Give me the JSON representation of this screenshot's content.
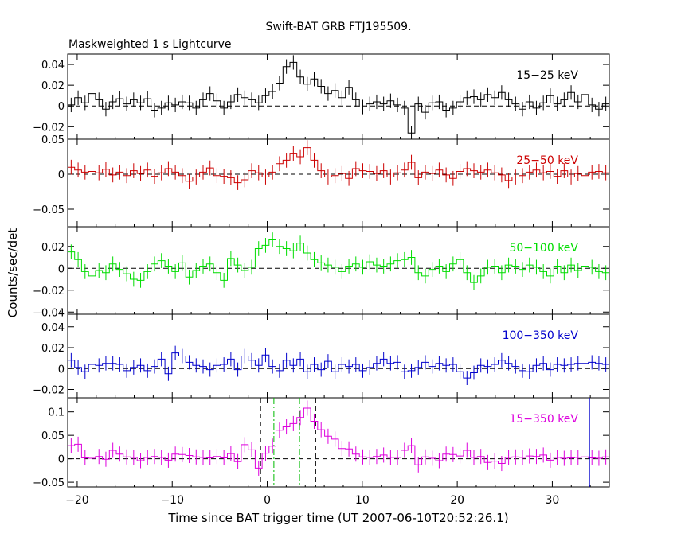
{
  "header": {
    "title": "Swift-BAT GRB FTJ195509.",
    "subtitle": "Maskweighted 1 s Lightcurve"
  },
  "chart_data": {
    "type": "line",
    "xlabel": "Time since BAT trigger time (UT 2007-06-10T20:52:26.1)",
    "ylabel": "Counts/sec/det",
    "xlim": [
      -21,
      36
    ],
    "x_ticks": [
      -20,
      -10,
      0,
      10,
      20,
      30
    ],
    "x_tick_labels": [
      "−20",
      "−10",
      "0",
      "10",
      "20",
      "30"
    ],
    "vertical_markers": [
      {
        "x": -0.7,
        "color": "#000000",
        "style": "dashed"
      },
      {
        "x": 5.1,
        "color": "#000000",
        "style": "dashed"
      },
      {
        "x": 0.7,
        "color": "#00bb00",
        "style": "dashdot"
      },
      {
        "x": 3.4,
        "color": "#00bb00",
        "style": "dashdot"
      },
      {
        "x": 33.9,
        "color": "#0000cc",
        "style": "solid",
        "panel": 4
      }
    ],
    "panels": [
      {
        "name": "15−25 keV",
        "color": "#000000",
        "ylim": [
          -0.032,
          0.05
        ],
        "y_ticks": [
          0.04,
          0.02,
          0,
          -0.02
        ],
        "y_tick_labels": [
          "0.04",
          "0.02",
          "0",
          "−0.02"
        ],
        "values": [
          0.001,
          0.008,
          0.003,
          0.012,
          0.006,
          -0.003,
          0.004,
          0.007,
          0.002,
          0.006,
          0.003,
          0.007,
          -0.004,
          -0.002,
          0.003,
          0.001,
          0.004,
          0.003,
          -0.002,
          0.006,
          0.012,
          0.005,
          -0.002,
          0.004,
          0.011,
          0.008,
          0.006,
          0.003,
          0.01,
          0.014,
          0.022,
          0.038,
          0.042,
          0.028,
          0.021,
          0.026,
          0.019,
          0.012,
          0.015,
          0.008,
          0.018,
          0.006,
          -0.001,
          0.002,
          0.004,
          0.002,
          0.005,
          0.001,
          -0.002,
          -0.026,
          0.002,
          -0.006,
          0.003,
          0.004,
          -0.004,
          -0.002,
          0.004,
          0.008,
          0.009,
          0.006,
          0.011,
          0.008,
          0.013,
          0.006,
          0.002,
          -0.003,
          0.004,
          -0.002,
          0.003,
          0.01,
          0.002,
          0.006,
          0.013,
          0.004,
          0.011,
          0.001,
          -0.003,
          0.002
        ]
      },
      {
        "name": "25−50 keV",
        "color": "#cc0000",
        "ylim": [
          -0.075,
          0.05
        ],
        "y_ticks": [
          0.05,
          0,
          -0.05
        ],
        "y_tick_labels": [
          "0.05",
          "0",
          "−0.05"
        ],
        "values": [
          0.01,
          0.006,
          0.003,
          0.004,
          0.002,
          0.007,
          -0.001,
          0.003,
          -0.002,
          0.005,
          0.001,
          0.006,
          -0.003,
          0.002,
          0.008,
          0.003,
          -0.002,
          -0.01,
          -0.004,
          0.003,
          0.009,
          -0.002,
          -0.003,
          -0.005,
          -0.012,
          -0.008,
          0.005,
          0.002,
          -0.004,
          0.003,
          0.015,
          0.02,
          0.03,
          0.025,
          0.038,
          0.02,
          0.005,
          -0.004,
          -0.002,
          0.001,
          -0.006,
          0.008,
          0.005,
          0.004,
          0.001,
          0.005,
          -0.004,
          0.002,
          0.006,
          0.017,
          -0.005,
          0.003,
          0.001,
          0.006,
          -0.001,
          -0.006,
          0.004,
          0.008,
          0.005,
          0.003,
          0.006,
          0.002,
          -0.001,
          -0.009,
          -0.004,
          -0.002,
          0.003,
          0.006,
          0.002,
          0.004,
          -0.003,
          0.005,
          -0.004,
          0.001,
          -0.002,
          0.003,
          0.004,
          0.002
        ]
      },
      {
        "name": "50−100 keV",
        "color": "#00dd00",
        "ylim": [
          -0.042,
          0.038
        ],
        "y_ticks": [
          0.02,
          0,
          -0.02,
          -0.04
        ],
        "y_tick_labels": [
          "0.02",
          "0",
          "−0.02",
          "−0.04"
        ],
        "values": [
          0.015,
          0.008,
          -0.003,
          -0.007,
          -0.002,
          -0.004,
          0.004,
          -0.001,
          -0.005,
          -0.01,
          -0.011,
          -0.003,
          0.004,
          0.007,
          0.002,
          -0.003,
          0.005,
          -0.008,
          -0.002,
          0.002,
          0.004,
          -0.004,
          -0.011,
          0.009,
          0.003,
          -0.002,
          0.001,
          0.018,
          0.021,
          0.026,
          0.02,
          0.018,
          0.016,
          0.023,
          0.014,
          0.008,
          0.005,
          0.003,
          0.001,
          -0.003,
          0.002,
          0.004,
          0.001,
          0.006,
          0.003,
          0.002,
          0.004,
          0.007,
          0.008,
          0.01,
          -0.004,
          -0.007,
          -0.001,
          0.002,
          -0.003,
          0.004,
          0.008,
          -0.004,
          -0.013,
          -0.007,
          0.001,
          0.002,
          -0.004,
          0.003,
          0.002,
          -0.001,
          0.003,
          0.001,
          -0.003,
          -0.007,
          0.002,
          -0.004,
          0.003,
          -0.002,
          0.002,
          0.001,
          -0.003,
          -0.004
        ]
      },
      {
        "name": "100−350 keV",
        "color": "#0000cc",
        "ylim": [
          -0.028,
          0.052
        ],
        "y_ticks": [
          0.04,
          0.02,
          0,
          -0.02
        ],
        "y_tick_labels": [
          "0.04",
          "0.02",
          "0",
          "−0.02"
        ],
        "values": [
          0.008,
          0.001,
          -0.003,
          0.004,
          0.003,
          0.005,
          0.005,
          0.004,
          -0.002,
          0.001,
          0.003,
          -0.002,
          0.002,
          0.009,
          -0.005,
          0.015,
          0.012,
          0.006,
          0.003,
          0.002,
          -0.001,
          0.003,
          0.004,
          0.009,
          -0.001,
          0.012,
          0.008,
          0.003,
          0.013,
          0.002,
          -0.002,
          0.008,
          0.003,
          0.009,
          -0.003,
          0.004,
          -0.001,
          0.007,
          -0.003,
          0.004,
          0.002,
          0.004,
          -0.002,
          0.001,
          0.005,
          0.009,
          0.005,
          0.006,
          -0.003,
          -0.002,
          0.001,
          0.006,
          0.002,
          0.005,
          0.003,
          0.004,
          -0.003,
          -0.009,
          -0.004,
          0.003,
          0.002,
          0.004,
          0.008,
          0.005,
          0.002,
          -0.002,
          -0.003,
          0.003,
          0.005,
          -0.001,
          0.004,
          0.003,
          0.004,
          0.005,
          0.005,
          0.006,
          0.005,
          0.004
        ]
      },
      {
        "name": "15−350 keV",
        "color": "#dd00dd",
        "ylim": [
          -0.06,
          0.13
        ],
        "y_ticks": [
          0.1,
          0.05,
          0,
          -0.05
        ],
        "y_tick_labels": [
          "0.1",
          "0.05",
          "0",
          "−0.05"
        ],
        "values": [
          0.028,
          0.031,
          0.002,
          0.001,
          0.005,
          -0.001,
          0.018,
          0.01,
          0.004,
          0.003,
          -0.004,
          0.003,
          0.005,
          0.003,
          -0.003,
          0.01,
          0.009,
          0.007,
          0.004,
          0.003,
          0.002,
          0.005,
          0.002,
          0.011,
          -0.006,
          0.03,
          0.019,
          -0.02,
          0.012,
          0.027,
          0.061,
          0.068,
          0.075,
          0.088,
          0.108,
          0.08,
          0.062,
          0.048,
          0.042,
          0.022,
          0.021,
          0.01,
          0.004,
          0.003,
          0.005,
          0.008,
          0.003,
          0.003,
          0.018,
          0.028,
          -0.013,
          0.004,
          0.001,
          -0.004,
          0.01,
          0.009,
          0.006,
          0.018,
          0.003,
          0.005,
          -0.008,
          -0.005,
          -0.01,
          0.003,
          0.004,
          0.003,
          0.006,
          0.005,
          0.008,
          -0.003,
          0.003,
          0.001,
          0.002,
          0.003,
          0.004,
          0.002,
          0.001,
          0.004
        ]
      }
    ]
  }
}
